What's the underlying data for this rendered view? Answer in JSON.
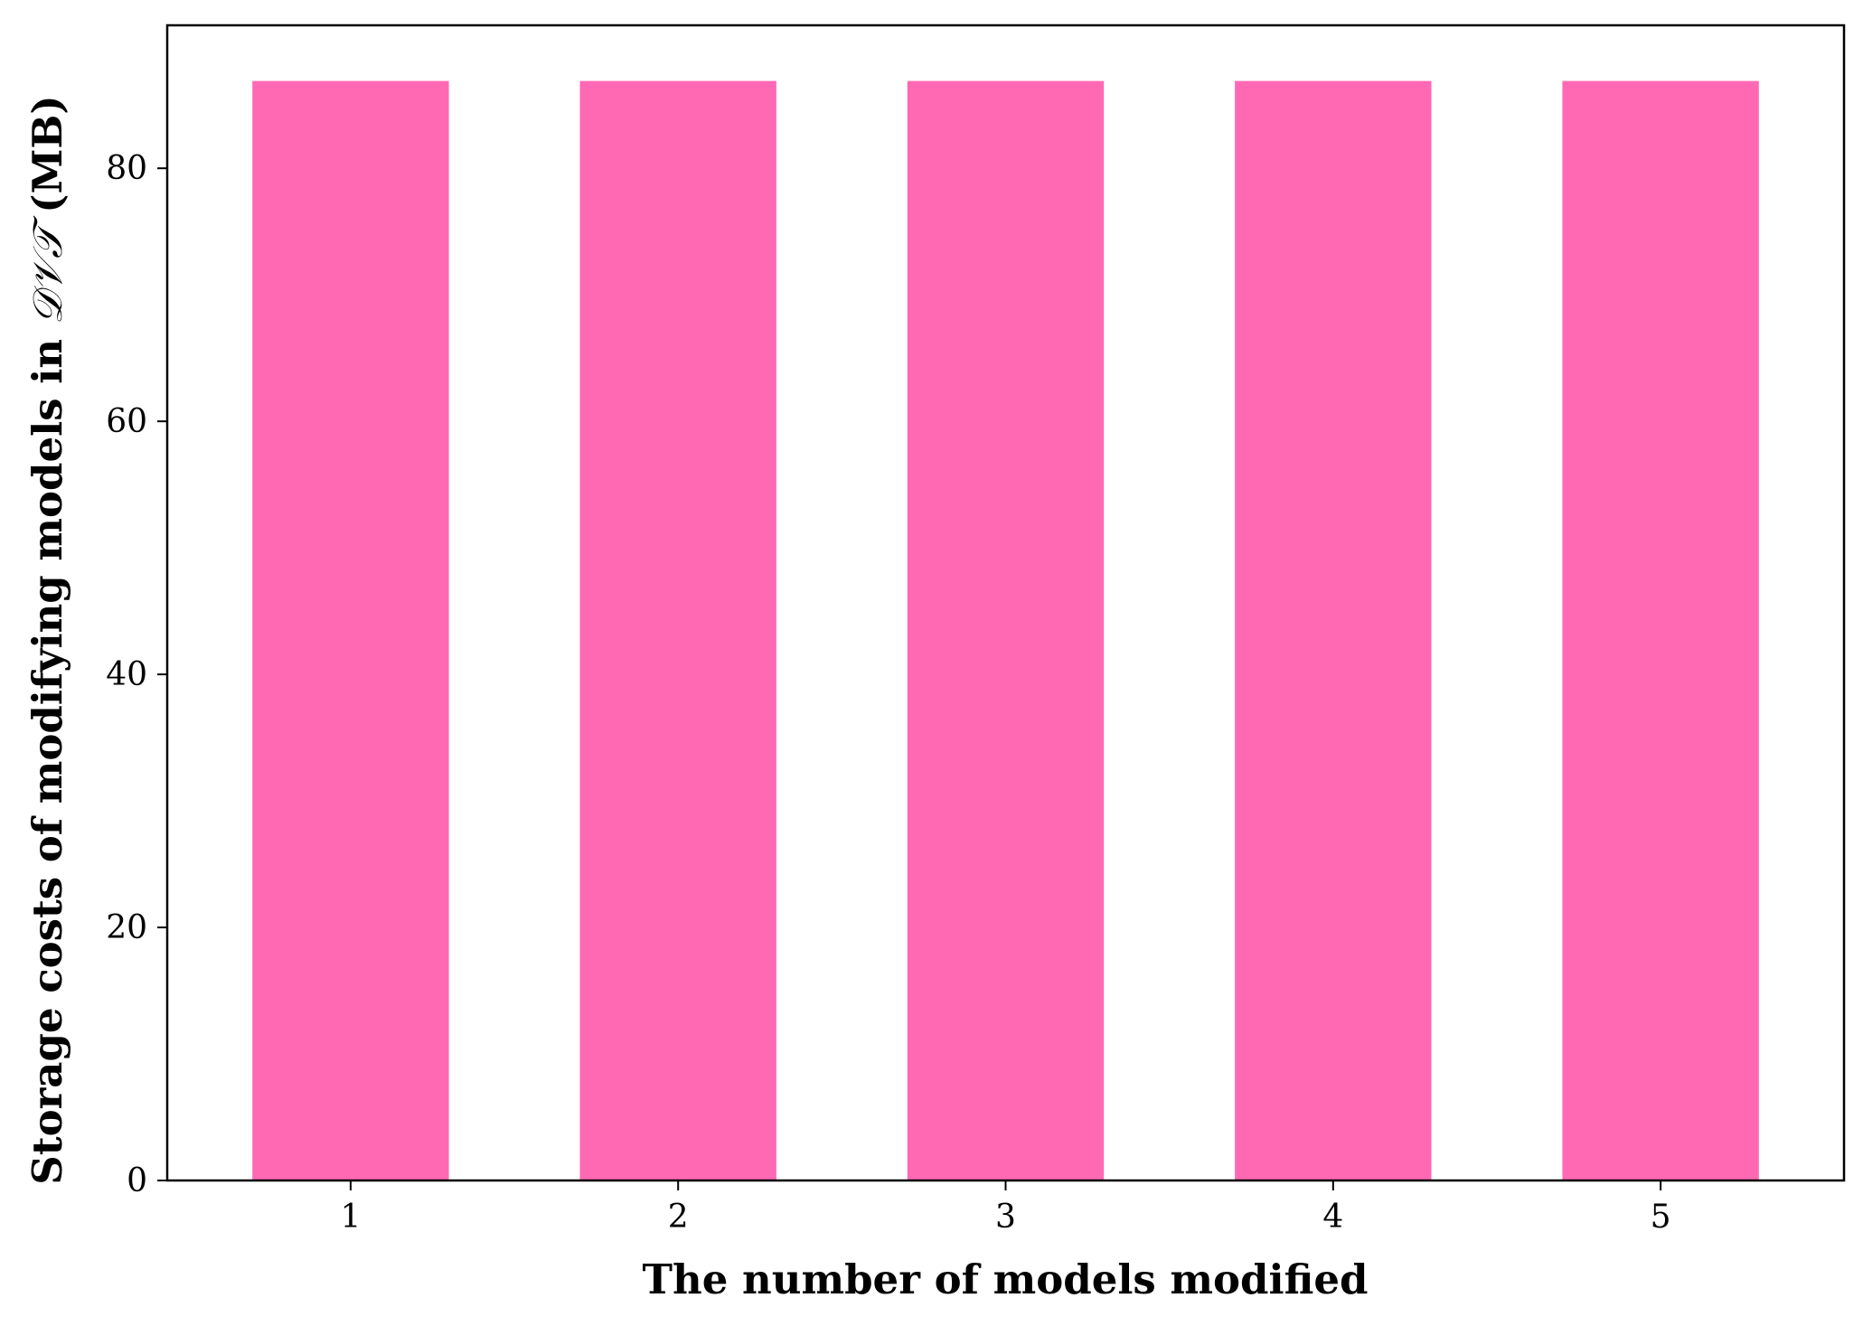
{
  "chart_data": {
    "type": "bar",
    "categories": [
      "1",
      "2",
      "3",
      "4",
      "5"
    ],
    "values": [
      86.9,
      86.9,
      86.9,
      86.9,
      86.9
    ],
    "title": "",
    "xlabel": "The number of models modified",
    "ylabel": {
      "prefix": "Storage costs of modifying models in ",
      "math": "𝒟𝒱𝒯",
      "suffix": " (MB)"
    },
    "ylim": [
      0,
      91.3
    ],
    "yticks": [
      0,
      20,
      40,
      60,
      80
    ],
    "grid": false,
    "legend": "none",
    "bar_color": "#ff69b4"
  }
}
